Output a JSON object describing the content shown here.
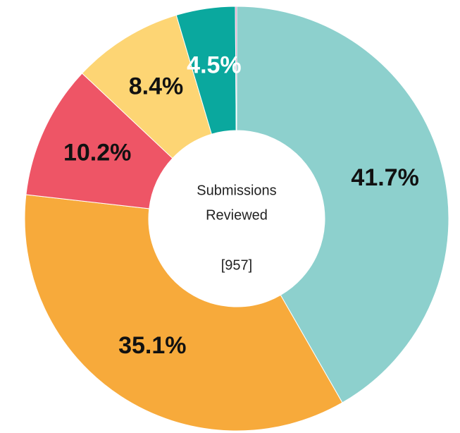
{
  "chart_data": {
    "type": "donut",
    "values": [
      41.7,
      35.1,
      10.2,
      8.4,
      4.5,
      0.1
    ],
    "value_labels": [
      "41.7%",
      "35.1%",
      "10.2%",
      "8.4%",
      "4.5%",
      null
    ],
    "colors": [
      "#8dd0cd",
      "#f7aa3b",
      "#ee5566",
      "#fdd574",
      "#0aa89e",
      "#d9579b"
    ],
    "label_colors": [
      "#111111",
      "#111111",
      "#111111",
      "#111111",
      "#ffffff",
      "#111111"
    ],
    "center_label": [
      "Submissions",
      "Reviewed"
    ],
    "center_value": "[957]"
  }
}
